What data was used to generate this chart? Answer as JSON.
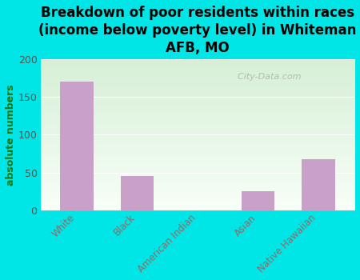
{
  "title": "Breakdown of poor residents within races\n(income below poverty level) in Whiteman\nAFB, MO",
  "categories": [
    "White",
    "Black",
    "American Indian",
    "Asian",
    "Native Hawaiian"
  ],
  "values": [
    170,
    45,
    0,
    25,
    67
  ],
  "bar_color": "#c8a0c8",
  "ylabel": "absolute numbers",
  "ylim": [
    0,
    200
  ],
  "yticks": [
    0,
    50,
    100,
    150,
    200
  ],
  "background_color": "#00e5e5",
  "plot_bg_top": "#d6efd6",
  "plot_bg_bottom": "#f8fff8",
  "watermark": "  City-Data.com",
  "title_fontsize": 12,
  "ylabel_fontsize": 9,
  "tick_label_color": "#996666",
  "ytick_label_color": "#555555"
}
